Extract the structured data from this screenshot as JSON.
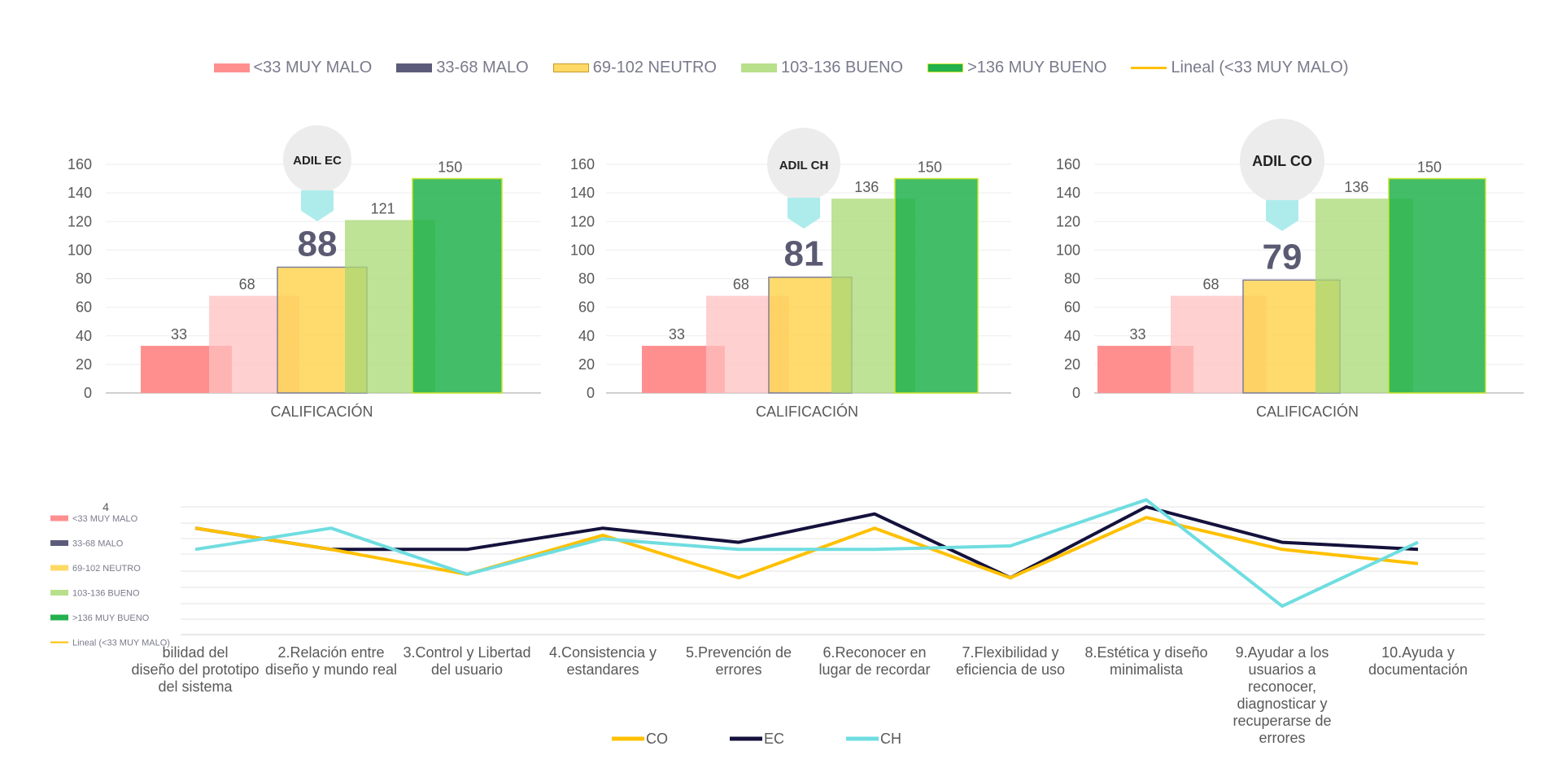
{
  "legend_colors": {
    "muy_malo": "#ff8f8f",
    "malo": "#5c5c7a",
    "neutro": "#ffd966",
    "bueno": "#b8e08a",
    "muy_bueno": "#22b14c",
    "lineal": "#ffc000"
  },
  "top_legend": [
    {
      "label": "<33 MUY MALO",
      "color": "#ff8f8f",
      "kind": "box"
    },
    {
      "label": "33-68 MALO",
      "color": "#5c5c7a",
      "kind": "box"
    },
    {
      "label": "69-102 NEUTRO",
      "color": "#ffd966",
      "kind": "box",
      "border": "#c99a2a"
    },
    {
      "label": "103-136 BUENO",
      "color": "#b8e08a",
      "kind": "box"
    },
    {
      "label": ">136 MUY BUENO",
      "color": "#22b14c",
      "kind": "box",
      "border": "#c8e62a"
    },
    {
      "label": "Lineal (<33 MUY MALO)",
      "color": "#ffc000",
      "kind": "line"
    }
  ],
  "chart_data": [
    {
      "type": "bar",
      "badge": "ADIL EC",
      "score_label": "88",
      "categories": [
        "CALIFICACIÓN"
      ],
      "series": [
        {
          "name": "<33 MUY MALO",
          "values": [
            33
          ]
        },
        {
          "name": "33-68 MALO",
          "values": [
            68
          ]
        },
        {
          "name": "69-102 NEUTRO",
          "values": [
            88
          ]
        },
        {
          "name": "103-136 BUENO",
          "values": [
            121
          ]
        },
        {
          "name": ">136 MUY BUENO",
          "values": [
            150
          ]
        }
      ],
      "data_labels": [
        "33",
        "68",
        "",
        "121",
        "150"
      ],
      "yticks": [
        "0",
        "20",
        "40",
        "60",
        "80",
        "100",
        "120",
        "140",
        "160"
      ],
      "ylim": [
        0,
        160
      ],
      "xlabel": "CALIFICACIÓN"
    },
    {
      "type": "bar",
      "badge": "ADIL CH",
      "score_label": "81",
      "categories": [
        "CALIFICACIÓN"
      ],
      "series": [
        {
          "name": "<33 MUY MALO",
          "values": [
            33
          ]
        },
        {
          "name": "33-68 MALO",
          "values": [
            68
          ]
        },
        {
          "name": "69-102 NEUTRO",
          "values": [
            81
          ]
        },
        {
          "name": "103-136 BUENO",
          "values": [
            136
          ]
        },
        {
          "name": ">136 MUY BUENO",
          "values": [
            150
          ]
        }
      ],
      "data_labels": [
        "33",
        "68",
        "",
        "136",
        "150"
      ],
      "yticks": [
        "0",
        "20",
        "40",
        "60",
        "80",
        "100",
        "120",
        "140",
        "160"
      ],
      "ylim": [
        0,
        160
      ],
      "xlabel": "CALIFICACIÓN"
    },
    {
      "type": "bar",
      "badge": "ADIL CO",
      "score_label": "79",
      "categories": [
        "CALIFICACIÓN"
      ],
      "series": [
        {
          "name": "<33 MUY MALO",
          "values": [
            33
          ]
        },
        {
          "name": "33-68 MALO",
          "values": [
            68
          ]
        },
        {
          "name": "69-102 NEUTRO",
          "values": [
            79
          ]
        },
        {
          "name": "103-136 BUENO",
          "values": [
            136
          ]
        },
        {
          "name": ">136 MUY BUENO",
          "values": [
            150
          ]
        }
      ],
      "data_labels": [
        "33",
        "68",
        "",
        "136",
        "150"
      ],
      "yticks": [
        "0",
        "20",
        "40",
        "60",
        "80",
        "100",
        "120",
        "140",
        "160"
      ],
      "ylim": [
        0,
        160
      ],
      "xlabel": "CALIFICACIÓN"
    },
    {
      "type": "line",
      "visible_ytick": "4",
      "ylim": [
        2.2,
        4
      ],
      "categories": [
        [
          "bilidad del",
          "diseño del prototipo",
          "del sistema"
        ],
        [
          "2.Relación entre",
          "diseño y mundo real"
        ],
        [
          "3.Control y Libertad",
          "del usuario"
        ],
        [
          "4.Consistencia y",
          "estandares"
        ],
        [
          "5.Prevención de",
          "errores"
        ],
        [
          "6.Reconocer en",
          "lugar de recordar"
        ],
        [
          "7.Flexibilidad y",
          "eficiencia de uso"
        ],
        [
          "8.Estética y diseño",
          "minimalista"
        ],
        [
          "9.Ayudar a los",
          "usuarios a",
          "reconocer,",
          "diagnosticar y",
          "recuperarse de",
          "errores"
        ],
        [
          "10.Ayuda y",
          "documentación"
        ]
      ],
      "series": [
        {
          "name": "CO",
          "color": "#ffc000",
          "values": [
            3.7,
            3.4,
            3.05,
            3.6,
            3.0,
            3.7,
            3.0,
            3.85,
            3.4,
            3.2
          ]
        },
        {
          "name": "EC",
          "color": "#14123c",
          "values": [
            3.7,
            3.4,
            3.4,
            3.7,
            3.5,
            3.9,
            3.0,
            4.0,
            3.5,
            3.4
          ]
        },
        {
          "name": "CH",
          "color": "#6fdde0",
          "values": [
            3.4,
            3.7,
            3.05,
            3.55,
            3.4,
            3.4,
            3.45,
            4.1,
            2.6,
            3.5
          ]
        }
      ],
      "overlay_legend": [
        {
          "label": "<33 MUY MALO",
          "color": "#ff8f8f",
          "kind": "box"
        },
        {
          "label": "33-68 MALO",
          "color": "#5c5c7a",
          "kind": "box"
        },
        {
          "label": "69-102 NEUTRO",
          "color": "#ffd966",
          "kind": "box"
        },
        {
          "label": "103-136 BUENO",
          "color": "#b8e08a",
          "kind": "box"
        },
        {
          "label": ">136 MUY BUENO",
          "color": "#22b14c",
          "kind": "box"
        },
        {
          "label": "Lineal (<33 MUY MALO)",
          "color": "#ffc000",
          "kind": "line"
        }
      ],
      "legend": "bottom"
    }
  ]
}
